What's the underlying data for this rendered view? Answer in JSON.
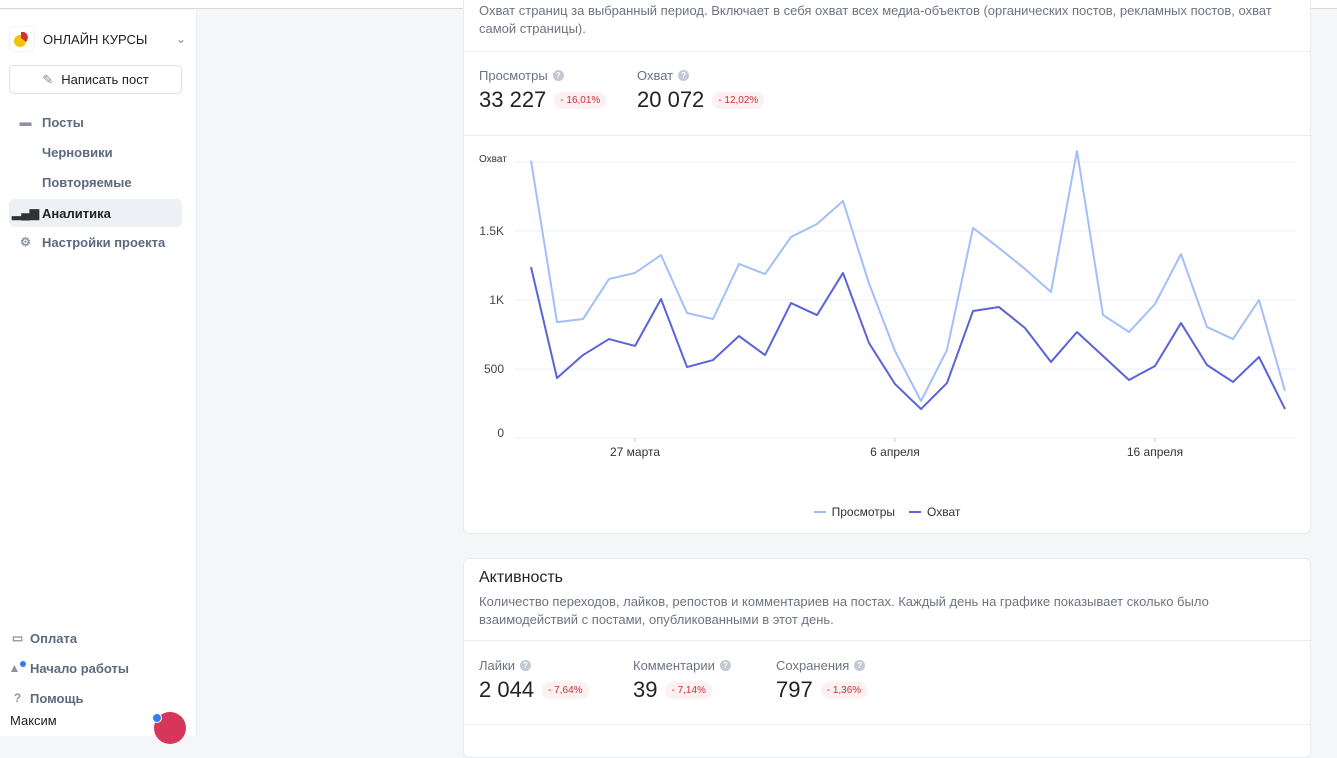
{
  "sidebar": {
    "project_name": "ОНЛАЙН КУРСЫ",
    "write_post": "Написать пост",
    "items": [
      {
        "label": "Посты",
        "icon": "calendar-icon"
      },
      {
        "label": "Черновики"
      },
      {
        "label": "Повторяемые"
      },
      {
        "label": "Аналитика",
        "icon": "bar-chart-icon",
        "active": true
      },
      {
        "label": "Настройки проекта",
        "icon": "gear-icon"
      }
    ],
    "bottom_items": [
      {
        "label": "Оплата",
        "icon": "credit-card-icon"
      },
      {
        "label": "Начало работы",
        "icon": "rocket-icon"
      },
      {
        "label": "Помощь",
        "icon": "help-circle-icon"
      }
    ],
    "user_name": "Максим"
  },
  "reach_card": {
    "description": "Охват страниц за выбранный период. Включает в себя охват всех медиа-объектов (органических постов, рекламных постов, охват самой страницы).",
    "metrics": [
      {
        "label": "Просмотры",
        "value": "33 227",
        "change": "- 16,01%"
      },
      {
        "label": "Охват",
        "value": "20 072",
        "change": "- 12,02%"
      }
    ]
  },
  "activity_card": {
    "title": "Активность",
    "description": "Количество переходов, лайков, репостов и комментариев на постах. Каждый день на графике показывает сколько было взаимодействий с постами, опубликованными в этот день.",
    "metrics": [
      {
        "label": "Лайки",
        "value": "2 044",
        "change": "- 7,64%"
      },
      {
        "label": "Комментарии",
        "value": "39",
        "change": "- 7,14%"
      },
      {
        "label": "Сохранения",
        "value": "797",
        "change": "- 1,36%"
      }
    ]
  },
  "colors": {
    "views": "#a3bffa",
    "reach": "#5a63d8",
    "negative": "#c8303a"
  },
  "chart_data": {
    "type": "line",
    "ylabel": "Охват",
    "ylim": [
      0,
      2000
    ],
    "yticks": [
      0,
      500,
      1000,
      1500,
      2000
    ],
    "ytick_labels": [
      "0",
      "500",
      "1K",
      "1.5K",
      ""
    ],
    "x_start": "23 марта",
    "xtick_labels": [
      {
        "label": "27 марта",
        "index": 4
      },
      {
        "label": "6 апреля",
        "index": 14
      },
      {
        "label": "16 апреля",
        "index": 24
      }
    ],
    "grid": true,
    "legend": "bottom",
    "series": [
      {
        "name": "Просмотры",
        "color": "#a3bffa",
        "values": [
          2010,
          840,
          862,
          1152,
          1196,
          1326,
          906,
          862,
          1261,
          1188,
          1457,
          1551,
          1717,
          1120,
          630,
          268,
          638,
          1522,
          1377,
          1225,
          1058,
          2080,
          891,
          768,
          971,
          1333,
          804,
          717,
          1000,
          341
        ]
      },
      {
        "name": "Охват",
        "color": "#5a63d8",
        "values": [
          1239,
          435,
          601,
          717,
          667,
          1007,
          514,
          565,
          739,
          601,
          978,
          891,
          1196,
          688,
          391,
          210,
          399,
          920,
          949,
          797,
          551,
          768,
          594,
          420,
          522,
          833,
          529,
          406,
          587,
          210
        ]
      }
    ]
  }
}
